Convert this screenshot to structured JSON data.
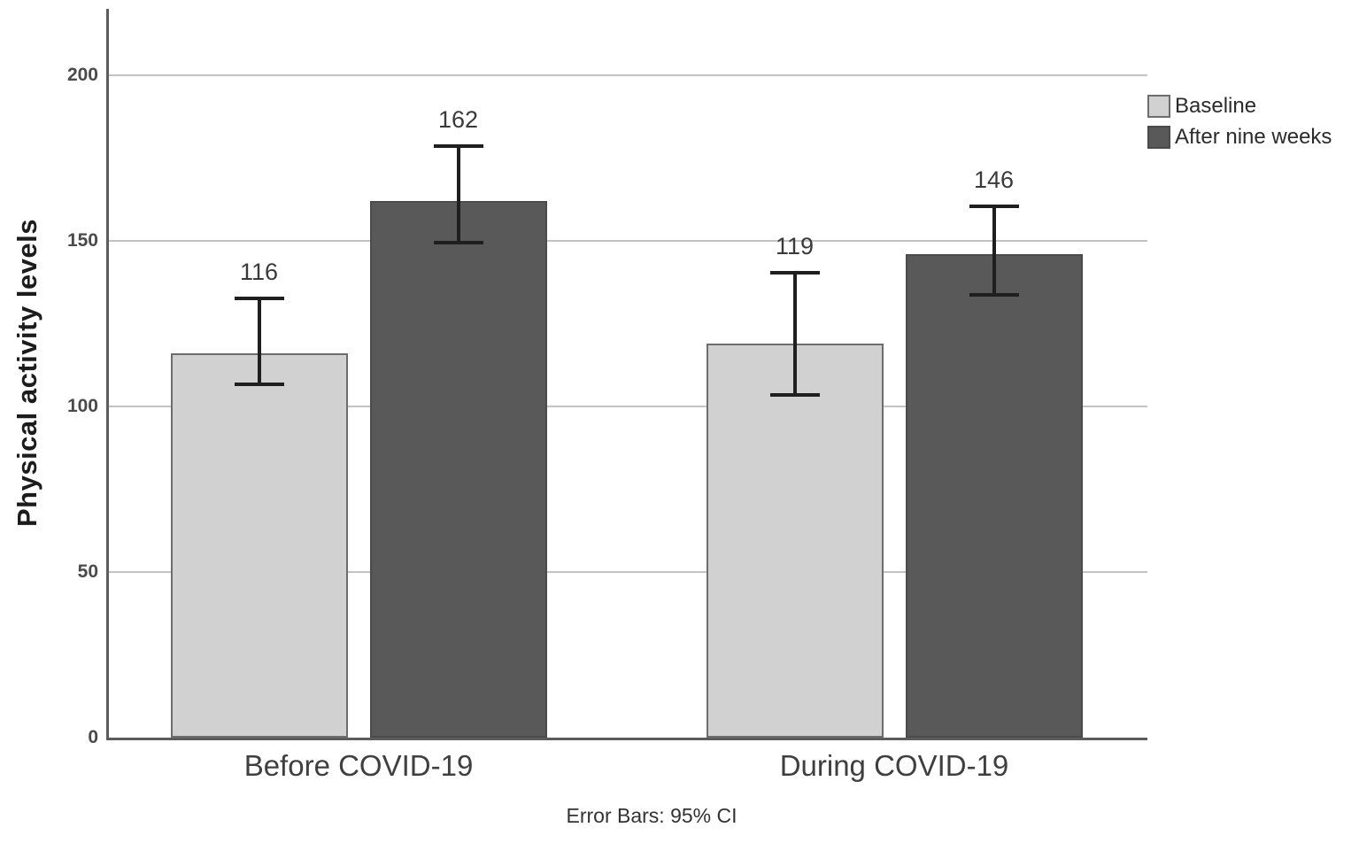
{
  "page": {
    "background": "#ffffff"
  },
  "chart_data": {
    "type": "bar",
    "title": "",
    "ylabel": "Physical activity levels",
    "xlabel": "",
    "categories": [
      "Before COVID-19",
      "During COVID-19"
    ],
    "series": [
      {
        "name": "Baseline",
        "color": "#d1d1d1",
        "border": "#6d6d6d",
        "values": [
          116,
          119
        ],
        "ci95": [
          [
            106,
            133
          ],
          [
            103,
            141
          ]
        ]
      },
      {
        "name": "After nine weeks",
        "color": "#595959",
        "border": "#4b4b4b",
        "values": [
          162,
          146
        ],
        "ci95": [
          [
            149,
            179
          ],
          [
            133,
            161
          ]
        ]
      }
    ],
    "ylim": [
      0,
      220
    ],
    "yticks": [
      0,
      50,
      100,
      150,
      200
    ],
    "grid": "horizontal",
    "legend_position": "top-right",
    "value_labels_shown": true,
    "error_bars": "95% CI",
    "footnote": "Error Bars: 95% CI"
  },
  "colors": {
    "gridline": "#c3c3c3",
    "axis": "#5c5c5c",
    "error_bar": "#1f1f1f"
  }
}
